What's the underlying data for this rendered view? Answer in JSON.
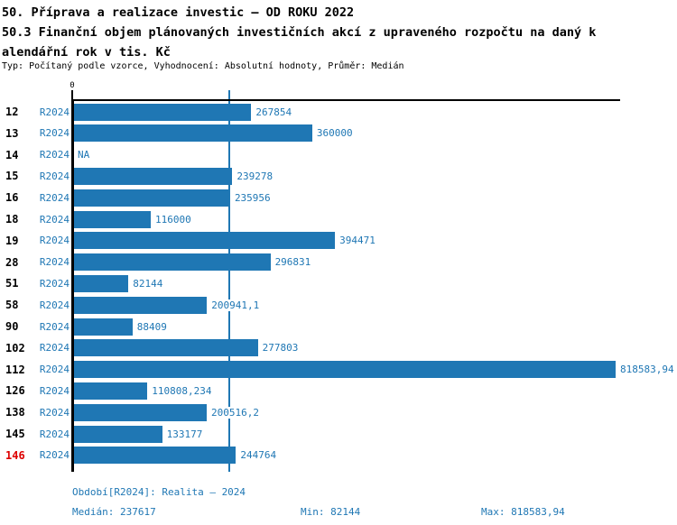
{
  "header": {
    "title_line1": "50. Příprava a realizace investic – OD ROKU 2022",
    "title_line2": "50.3 Finanční objem plánovaných investičních akcí z upraveného rozpočtu na daný k",
    "title_line3": "alendářní rok v tis. Kč",
    "meta": "Typ: Počítaný podle vzorce, Vyhodnocení: Absolutní hodnoty, Průměr: Medián"
  },
  "chart_data": {
    "type": "bar",
    "orientation": "horizontal",
    "title": "50.3 Finanční objem plánovaných investičních akcí z upraveného rozpočtu na daný kalendářní rok v tis. Kč",
    "series_name": "R2024",
    "zero_label": "0",
    "xlim": [
      0,
      827000
    ],
    "grid": false,
    "median_reference_line": 237617,
    "max_value": 818583.94,
    "colors": {
      "bar": "#1f77b4",
      "label_blue": "#1f77b4",
      "axis_black": "#000000",
      "highlight_red": "#dd0000"
    },
    "rows": [
      {
        "id": "12",
        "period": "R2024",
        "value": 267854,
        "label": "267854",
        "highlight": false
      },
      {
        "id": "13",
        "period": "R2024",
        "value": 360000,
        "label": "360000",
        "highlight": false
      },
      {
        "id": "14",
        "period": "R2024",
        "value": null,
        "label": "NA",
        "highlight": false
      },
      {
        "id": "15",
        "period": "R2024",
        "value": 239278,
        "label": "239278",
        "highlight": false
      },
      {
        "id": "16",
        "period": "R2024",
        "value": 235956,
        "label": "235956",
        "highlight": false
      },
      {
        "id": "18",
        "period": "R2024",
        "value": 116000,
        "label": "116000",
        "highlight": false
      },
      {
        "id": "19",
        "period": "R2024",
        "value": 394471,
        "label": "394471",
        "highlight": false
      },
      {
        "id": "28",
        "period": "R2024",
        "value": 296831,
        "label": "296831",
        "highlight": false
      },
      {
        "id": "51",
        "period": "R2024",
        "value": 82144,
        "label": "82144",
        "highlight": false
      },
      {
        "id": "58",
        "period": "R2024",
        "value": 200941.1,
        "label": "200941,1",
        "highlight": false
      },
      {
        "id": "90",
        "period": "R2024",
        "value": 88409,
        "label": "88409",
        "highlight": false
      },
      {
        "id": "102",
        "period": "R2024",
        "value": 277803,
        "label": "277803",
        "highlight": false
      },
      {
        "id": "112",
        "period": "R2024",
        "value": 818583.94,
        "label": "818583,94",
        "highlight": false
      },
      {
        "id": "126",
        "period": "R2024",
        "value": 110808.234,
        "label": "110808,234",
        "highlight": false
      },
      {
        "id": "138",
        "period": "R2024",
        "value": 200516.2,
        "label": "200516,2",
        "highlight": false
      },
      {
        "id": "145",
        "period": "R2024",
        "value": 133177,
        "label": "133177",
        "highlight": false
      },
      {
        "id": "146",
        "period": "R2024",
        "value": 244764,
        "label": "244764",
        "highlight": true
      }
    ]
  },
  "footer": {
    "period": "Období[R2024]: Realita – 2024",
    "median": "Medián: 237617",
    "min": "Min: 82144",
    "max": "Max: 818583,94"
  }
}
